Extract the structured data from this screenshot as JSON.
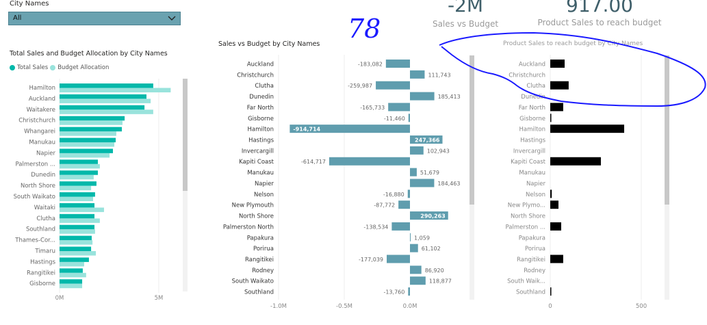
{
  "slicer": {
    "title": "City Names",
    "selected": "All",
    "icon": "chevron-down-icon"
  },
  "kpis": [
    {
      "value": "-2M",
      "label": "Sales vs Budget"
    },
    {
      "value": "917.00",
      "label": "Product Sales to reach budget"
    }
  ],
  "annotation": {
    "text": "78",
    "color": "#1a1aff"
  },
  "colors": {
    "total_sales": "#01b8aa",
    "budget": "#99e3dc",
    "variance": "#5f9dae",
    "product": "#000000"
  },
  "chart_data": [
    {
      "type": "bar",
      "orientation": "horizontal",
      "title": "Total Sales and Budget Allocation by City Names",
      "legend_position": "top-left",
      "categories": [
        "Hamilton",
        "Auckland",
        "Waitakere",
        "Christchurch",
        "Whangarei",
        "Manukau",
        "Napier",
        "Palmerston ...",
        "Dunedin",
        "North Shore",
        "South Waikato",
        "Waitaki",
        "Clutha",
        "Southland",
        "Thames-Cor...",
        "Timaru",
        "Hastings",
        "Rangitikei",
        "Gisborne"
      ],
      "series": [
        {
          "name": "Total Sales",
          "values": [
            4.72,
            4.38,
            4.28,
            3.28,
            3.14,
            2.83,
            2.69,
            1.93,
            1.93,
            1.86,
            1.79,
            1.76,
            1.76,
            1.76,
            1.62,
            1.59,
            1.48,
            1.17,
            1.14
          ]
        },
        {
          "name": "Budget Allocation",
          "values": [
            5.6,
            4.59,
            4.72,
            3.17,
            2.86,
            2.76,
            2.52,
            2.03,
            1.72,
            1.59,
            1.69,
            2.24,
            2.03,
            1.79,
            1.66,
            1.83,
            1.24,
            1.34,
            1.14
          ]
        }
      ],
      "unit": "M",
      "xlim": [
        0,
        6
      ],
      "ticks": [
        "0M",
        "5M"
      ]
    },
    {
      "type": "bar",
      "orientation": "horizontal",
      "title": "Sales vs Budget by City Names",
      "categories": [
        "Auckland",
        "Christchurch",
        "Clutha",
        "Dunedin",
        "Far North",
        "Gisborne",
        "Hamilton",
        "Hastings",
        "Invercargill",
        "Kapiti Coast",
        "Manukau",
        "Napier",
        "Nelson",
        "New Plymouth",
        "North Shore",
        "Palmerston North",
        "Papakura",
        "Porirua",
        "Rangitikei",
        "Rodney",
        "South Waikato",
        "Southland"
      ],
      "values": [
        -183082,
        111743,
        -259987,
        185413,
        -165733,
        -11460,
        -914714,
        247366,
        102943,
        -614717,
        51679,
        184463,
        -16880,
        -87772,
        290263,
        -138534,
        1059,
        61102,
        -177039,
        86920,
        118877,
        -13760
      ],
      "labels": [
        "-183,082",
        "111,743",
        "-259,987",
        "185,413",
        "-165,733",
        "-11,460",
        "-914,714",
        "247,366",
        "102,943",
        "-614,717",
        "51,679",
        "184,463",
        "-16,880",
        "-87,772",
        "290,263",
        "-138,534",
        "1,059",
        "61,102",
        "-177,039",
        "86,920",
        "118,877",
        "-13,760"
      ],
      "xlim": [
        -1000000,
        400000
      ],
      "ticks": [
        "-1.0M",
        "-0.5M",
        "0.0M"
      ]
    },
    {
      "type": "bar",
      "orientation": "horizontal",
      "title": "Product Sales to reach budget by City Names",
      "categories": [
        "Auckland",
        "Christchurch",
        "Clutha",
        "Dunedin",
        "Far North",
        "Gisborne",
        "Hamilton",
        "Hastings",
        "Invercargill",
        "Kapiti Coast",
        "Manukau",
        "Napier",
        "Nelson",
        "New Plymo...",
        "North Shore",
        "Palmerston ...",
        "Papakura",
        "Porirua",
        "Rangitikei",
        "Rodney",
        "South Waik...",
        "Southland"
      ],
      "values": [
        79,
        0,
        101,
        0,
        71,
        5,
        406,
        0,
        0,
        278,
        0,
        0,
        8,
        45,
        0,
        60,
        0,
        0,
        71,
        0,
        0,
        4
      ],
      "xlim": [
        0,
        640
      ],
      "ticks": [
        "0",
        "500"
      ]
    }
  ]
}
